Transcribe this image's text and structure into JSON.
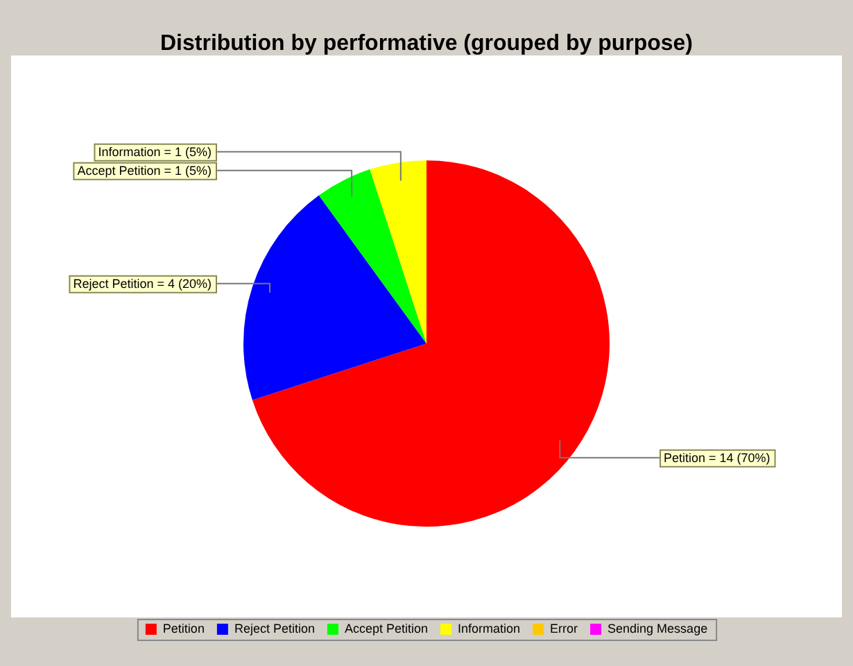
{
  "chart_data": {
    "type": "pie",
    "title": "Distribution by performative (grouped by purpose)",
    "categories": [
      "Petition",
      "Reject Petition",
      "Accept Petition",
      "Information",
      "Error",
      "Sending Message"
    ],
    "values": [
      14,
      4,
      1,
      1,
      0,
      0
    ],
    "colors": [
      "#ff0000",
      "#0000ff",
      "#00ff00",
      "#ffff00",
      "#ffc800",
      "#ff00ff"
    ],
    "value_labels": [
      "Petition = 14 (70%)",
      "Reject Petition = 4 (20%)",
      "Accept Petition = 1 (5%)",
      "Information = 1 (5%)",
      null,
      null
    ],
    "legend": "bottom"
  }
}
